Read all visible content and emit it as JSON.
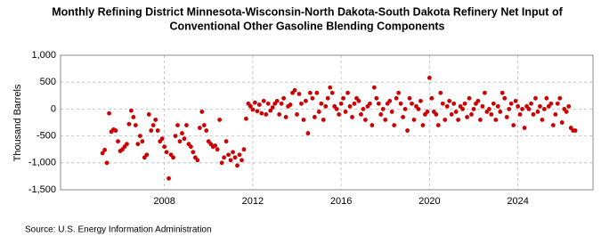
{
  "chart_data": {
    "type": "scatter",
    "title": [
      "Monthly Refining District Minnesota-Wisconsin-North Dakota-South Dakota Refinery Net Input of",
      "Conventional Other Gasoline Blending Components"
    ],
    "y_label": "Thousand Barrels",
    "source": "Source: U.S. Energy Information Administration",
    "color": "#cc0000",
    "grid": true,
    "xlim": [
      2003.3,
      2027.4
    ],
    "xticks": [
      2008,
      2012,
      2016,
      2020,
      2024
    ],
    "ylim": [
      -1500,
      1000
    ],
    "yticks": [
      {
        "value": 1000,
        "label": "1,000"
      },
      500,
      0,
      -500,
      {
        "value": -1000,
        "label": "-1,000"
      },
      {
        "value": -1500,
        "label": "-1,500"
      }
    ],
    "x": [
      2005.2,
      2005.3,
      2005.4,
      2005.5,
      2005.6,
      2005.7,
      2005.8,
      2005.9,
      2006.0,
      2006.1,
      2006.2,
      2006.3,
      2006.4,
      2006.5,
      2006.6,
      2006.7,
      2006.8,
      2006.9,
      2007.0,
      2007.1,
      2007.2,
      2007.3,
      2007.4,
      2007.5,
      2007.6,
      2007.7,
      2007.8,
      2007.9,
      2008.0,
      2008.1,
      2008.2,
      2008.3,
      2008.4,
      2008.5,
      2008.6,
      2008.7,
      2008.8,
      2008.9,
      2009.0,
      2009.1,
      2009.2,
      2009.3,
      2009.4,
      2009.5,
      2009.6,
      2009.7,
      2009.8,
      2009.9,
      2010.0,
      2010.1,
      2010.2,
      2010.3,
      2010.4,
      2010.5,
      2010.6,
      2010.7,
      2010.8,
      2010.9,
      2011.0,
      2011.1,
      2011.2,
      2011.3,
      2011.4,
      2011.5,
      2011.6,
      2011.7,
      2011.8,
      2011.9,
      2012.0,
      2012.1,
      2012.2,
      2012.3,
      2012.4,
      2012.5,
      2012.6,
      2012.7,
      2012.8,
      2012.9,
      2013.0,
      2013.1,
      2013.2,
      2013.3,
      2013.4,
      2013.5,
      2013.6,
      2013.7,
      2013.8,
      2013.9,
      2014.0,
      2014.1,
      2014.2,
      2014.3,
      2014.4,
      2014.5,
      2014.6,
      2014.7,
      2014.8,
      2014.9,
      2015.0,
      2015.1,
      2015.2,
      2015.3,
      2015.4,
      2015.5,
      2015.6,
      2015.7,
      2015.8,
      2015.9,
      2016.0,
      2016.1,
      2016.2,
      2016.3,
      2016.4,
      2016.5,
      2016.6,
      2016.7,
      2016.8,
      2016.9,
      2017.0,
      2017.1,
      2017.2,
      2017.3,
      2017.4,
      2017.5,
      2017.6,
      2017.7,
      2017.8,
      2017.9,
      2018.0,
      2018.1,
      2018.2,
      2018.3,
      2018.4,
      2018.5,
      2018.6,
      2018.7,
      2018.8,
      2018.9,
      2019.0,
      2019.1,
      2019.2,
      2019.3,
      2019.4,
      2019.5,
      2019.6,
      2019.7,
      2019.8,
      2019.9,
      2020.0,
      2020.1,
      2020.2,
      2020.3,
      2020.4,
      2020.5,
      2020.6,
      2020.7,
      2020.8,
      2020.9,
      2021.0,
      2021.1,
      2021.2,
      2021.3,
      2021.4,
      2021.5,
      2021.6,
      2021.7,
      2021.8,
      2021.9,
      2022.0,
      2022.1,
      2022.2,
      2022.3,
      2022.4,
      2022.5,
      2022.6,
      2022.7,
      2022.8,
      2022.9,
      2023.0,
      2023.1,
      2023.2,
      2023.3,
      2023.4,
      2023.5,
      2023.6,
      2023.7,
      2023.8,
      2023.9,
      2024.0,
      2024.1,
      2024.2,
      2024.3,
      2024.4,
      2024.5,
      2024.6,
      2024.7,
      2024.8,
      2024.9,
      2025.0,
      2025.1,
      2025.2,
      2025.3,
      2025.4,
      2025.5,
      2025.6,
      2025.7,
      2025.8,
      2025.9,
      2026.0,
      2026.1,
      2026.2,
      2026.3,
      2026.4,
      2026.5,
      2026.6
    ],
    "values": [
      -820,
      -760,
      -1000,
      -80,
      -420,
      -380,
      -400,
      -600,
      -780,
      -750,
      -700,
      -650,
      -280,
      -30,
      -150,
      -300,
      -650,
      -500,
      -600,
      -900,
      -850,
      -100,
      -400,
      -300,
      -200,
      -400,
      -600,
      -550,
      -700,
      -800,
      -1290,
      -850,
      -900,
      -500,
      -300,
      -600,
      -450,
      -550,
      -300,
      -650,
      -700,
      -800,
      -900,
      -950,
      -350,
      -50,
      -300,
      -400,
      -600,
      -650,
      -700,
      -680,
      -750,
      -200,
      -1000,
      -900,
      -600,
      -850,
      -950,
      -800,
      -900,
      -1050,
      -850,
      -950,
      -750,
      -180,
      100,
      50,
      -10,
      120,
      -40,
      80,
      -80,
      150,
      -100,
      100,
      -30,
      30,
      100,
      150,
      -100,
      100,
      200,
      -150,
      50,
      80,
      300,
      350,
      -100,
      280,
      100,
      -200,
      150,
      -450,
      300,
      200,
      -150,
      300,
      -50,
      100,
      -200,
      50,
      200,
      400,
      300,
      50,
      0,
      -100,
      100,
      200,
      -50,
      300,
      50,
      -150,
      100,
      200,
      150,
      -100,
      0,
      -200,
      50,
      100,
      -300,
      400,
      200,
      100,
      -100,
      0,
      -200,
      100,
      150,
      -50,
      -300,
      200,
      300,
      100,
      -150,
      0,
      -400,
      200,
      100,
      -200,
      50,
      0,
      150,
      -300,
      -100,
      -50,
      580,
      200,
      -50,
      -100,
      -300,
      300,
      100,
      -200,
      50,
      150,
      -100,
      100,
      -50,
      -200,
      50,
      0,
      100,
      -150,
      200,
      -100,
      0,
      100,
      150,
      -200,
      50,
      300,
      -50,
      0,
      -100,
      100,
      -200,
      50,
      -50,
      300,
      200,
      -150,
      0,
      100,
      -300,
      150,
      50,
      -100,
      0,
      -350,
      50,
      0,
      100,
      -100,
      200,
      -50,
      50,
      -200,
      0,
      200,
      50,
      100,
      -300,
      -100,
      100,
      200,
      -250,
      0,
      -50,
      50,
      -350,
      -400,
      -400
    ]
  }
}
